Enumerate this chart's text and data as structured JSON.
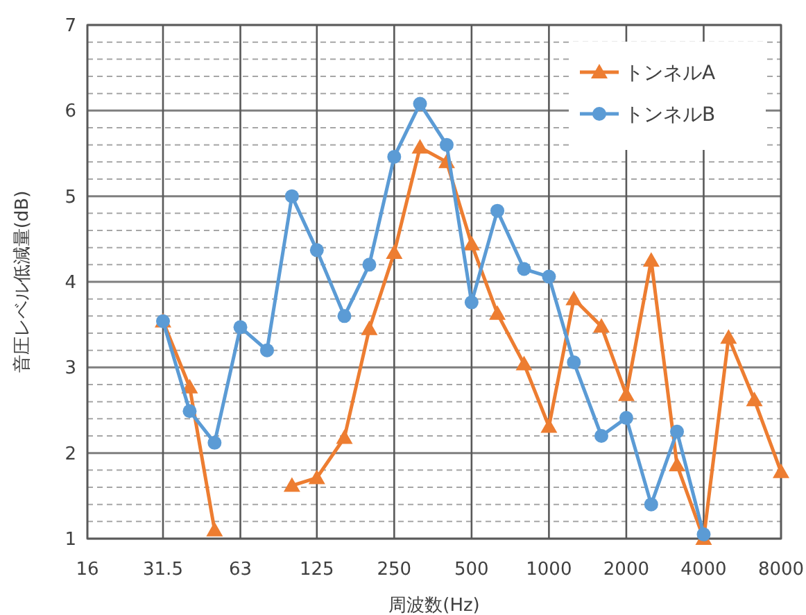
{
  "chart_data": {
    "type": "line",
    "xlabel": "周波数(Hz)",
    "ylabel": "音圧レベル低減量(dB)",
    "x": [
      31.5,
      40,
      50,
      63,
      80,
      100,
      125,
      160,
      200,
      250,
      315,
      400,
      500,
      630,
      800,
      1000,
      1250,
      1600,
      2000,
      2500,
      3150,
      4000,
      5000,
      6300,
      8000
    ],
    "log": "x",
    "xlim": [
      16,
      8000
    ],
    "xticks": [
      16,
      31.5,
      63,
      125,
      250,
      500,
      1000,
      2000,
      4000,
      8000
    ],
    "ylim": [
      1,
      7
    ],
    "yticks": [
      1,
      2,
      3,
      4,
      5,
      6,
      7
    ],
    "grid": true,
    "legend": "top right",
    "line_style": "solid",
    "series": [
      {
        "name": "トンネルA",
        "color": "#ed7d31",
        "marker": "triangle",
        "values": [
          3.54,
          2.77,
          1.1,
          null,
          null,
          1.62,
          1.71,
          2.18,
          3.45,
          4.34,
          5.57,
          5.4,
          4.44,
          3.63,
          3.04,
          2.31,
          3.8,
          3.48,
          2.68,
          4.25,
          1.86,
          1.0,
          3.35,
          2.62,
          1.78
        ]
      },
      {
        "name": "トンネルB",
        "color": "#5b9bd5",
        "marker": "circle",
        "values": [
          3.54,
          2.49,
          2.12,
          3.47,
          3.2,
          5.0,
          4.37,
          3.6,
          4.2,
          5.46,
          6.08,
          5.6,
          3.76,
          4.83,
          4.15,
          4.06,
          3.06,
          2.2,
          2.41,
          1.4,
          2.25,
          1.05,
          null,
          null,
          null
        ]
      }
    ]
  }
}
